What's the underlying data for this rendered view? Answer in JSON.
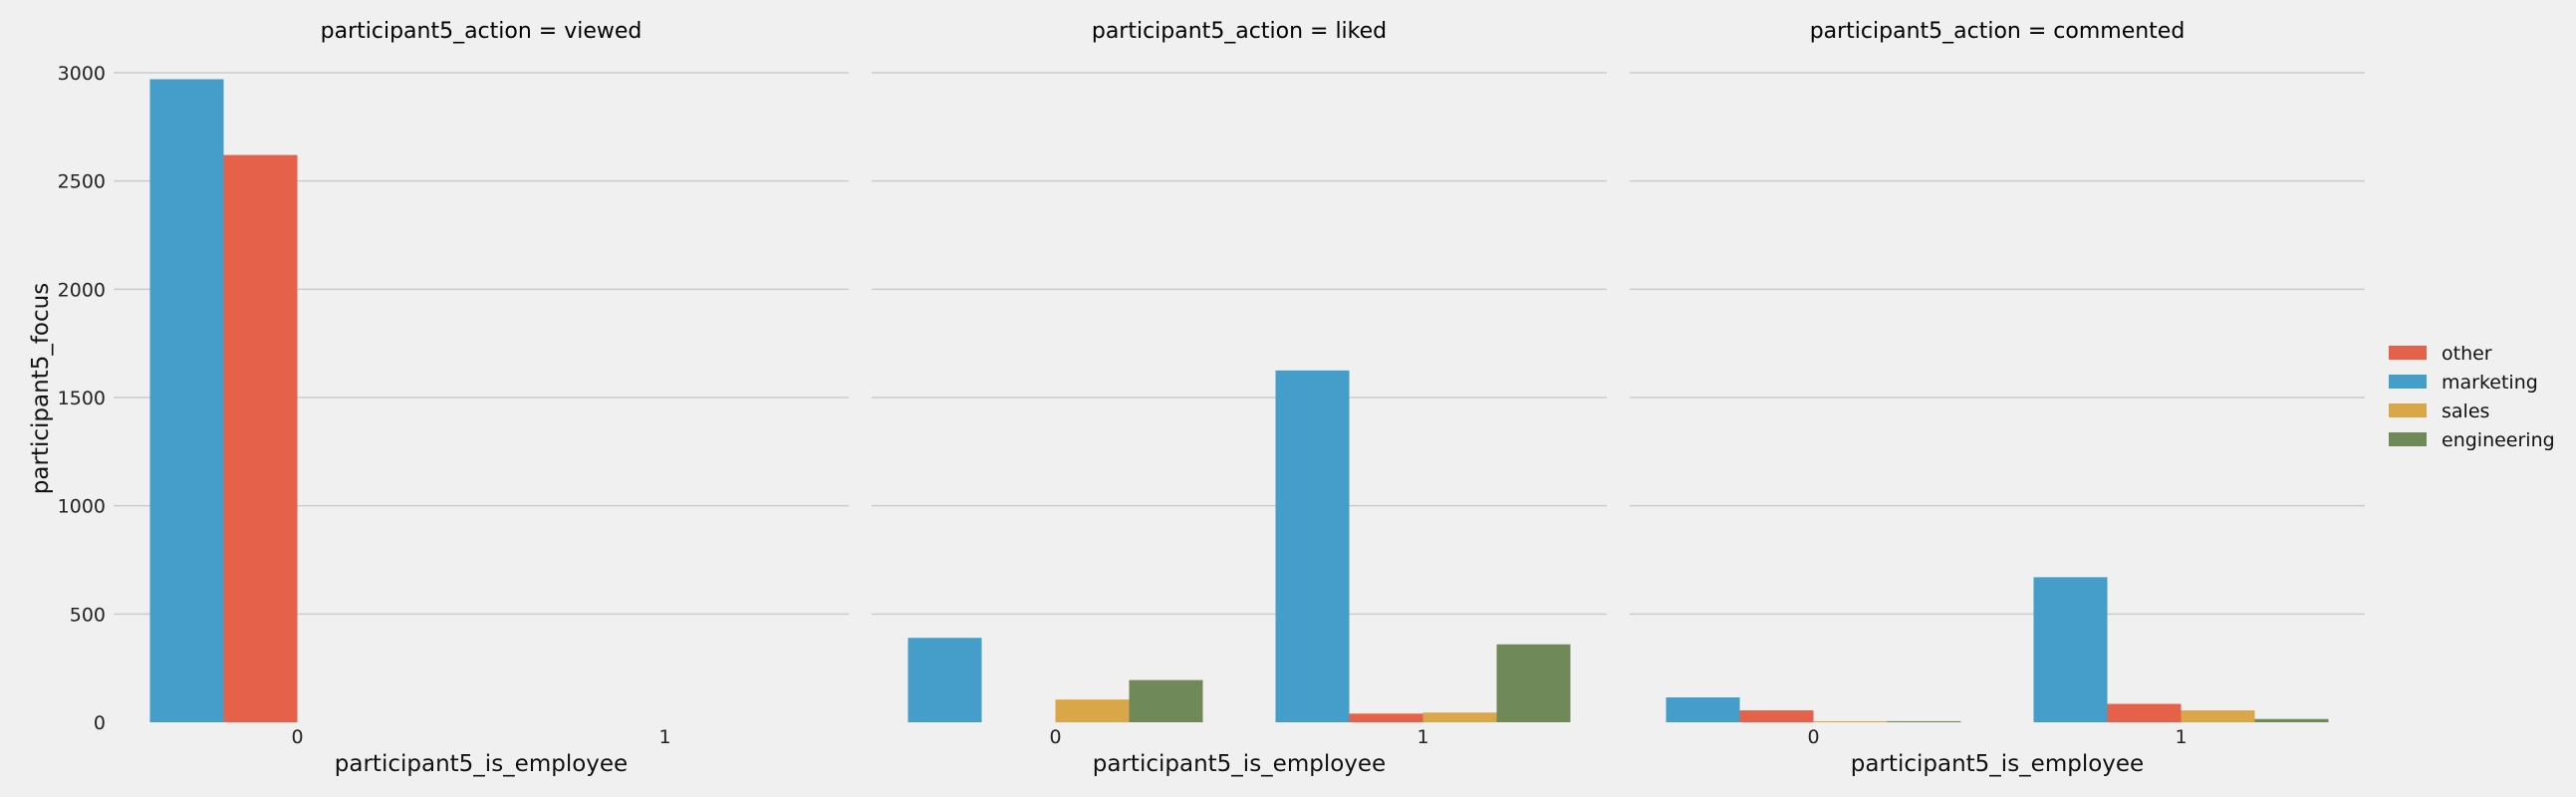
{
  "chart_data": {
    "type": "bar",
    "facet_variable": "participant5_action",
    "facet_title_template": "participant5_action = ",
    "facets": [
      "viewed",
      "liked",
      "commented"
    ],
    "categories": [
      "0",
      "1"
    ],
    "xlabel": "participant5_is_employee",
    "ylabel": "participant5_focus",
    "ylim": [
      0,
      3000
    ],
    "yticks": [
      0,
      500,
      1000,
      1500,
      2000,
      2500,
      3000
    ],
    "grid": true,
    "legend_position": "right",
    "hue_order": [
      "marketing",
      "other",
      "sales",
      "engineering"
    ],
    "legend_order": [
      "other",
      "marketing",
      "sales",
      "engineering"
    ],
    "colors": {
      "other": "#e5614a",
      "marketing": "#459dc9",
      "sales": "#d9a648",
      "engineering": "#6f8a58",
      "background": "#f0f0f0",
      "grid": "#cbcbcb"
    },
    "data": {
      "viewed": {
        "marketing": [
          2970,
          null
        ],
        "other": [
          2620,
          null
        ],
        "sales": [
          null,
          null
        ],
        "engineering": [
          null,
          null
        ]
      },
      "liked": {
        "marketing": [
          390,
          1625
        ],
        "other": [
          null,
          40
        ],
        "sales": [
          105,
          45
        ],
        "engineering": [
          195,
          360
        ]
      },
      "commented": {
        "marketing": [
          115,
          670
        ],
        "other": [
          55,
          85
        ],
        "sales": [
          5,
          55
        ],
        "engineering": [
          5,
          15
        ]
      }
    }
  }
}
